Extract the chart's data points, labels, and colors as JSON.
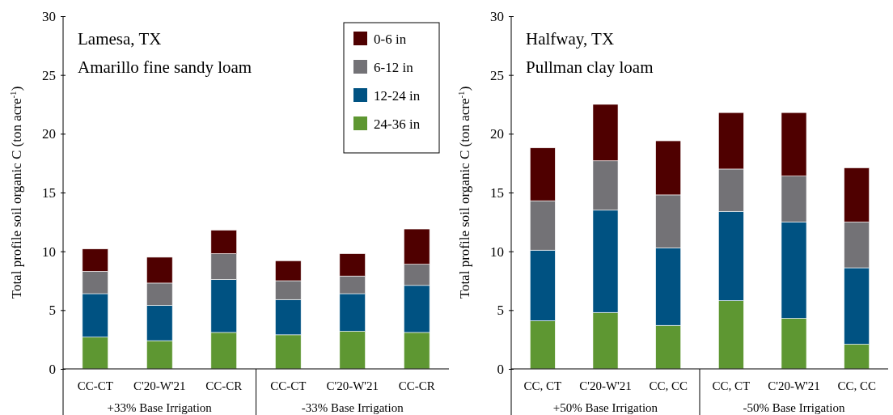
{
  "chart_data": [
    {
      "type": "bar",
      "stacked": true,
      "title": "Lamesa, TX",
      "subtitle": "Amarillo fine sandy loam",
      "ylabel": "Total profile soil organic C (ton acre$^{-1}$)",
      "categories": [
        "CC-CT",
        "C'20-W'21",
        "CC-CR",
        "CC-CT",
        "C'20-W'21",
        "CC-CR"
      ],
      "annotations": [
        "+33% Base Irrigation",
        "-33% Base Irrigation"
      ],
      "ylim": [
        0,
        30
      ],
      "yticks": [
        0,
        5,
        10,
        15,
        20,
        25,
        30
      ],
      "grid": false,
      "legend": "top right",
      "series": [
        {
          "name": "24-36 in",
          "color": "#5e9732",
          "values": [
            2.7,
            2.4,
            3.1,
            2.9,
            3.2,
            3.1
          ]
        },
        {
          "name": "12-24 in",
          "color": "#005282",
          "values": [
            3.7,
            3.0,
            4.5,
            3.0,
            3.2,
            4.0
          ]
        },
        {
          "name": "6-12 in",
          "color": "#737276",
          "values": [
            1.9,
            1.9,
            2.2,
            1.6,
            1.5,
            1.8
          ]
        },
        {
          "name": "0-6 in",
          "color": "#4f0000",
          "values": [
            1.9,
            2.2,
            2.0,
            1.7,
            1.9,
            3.0
          ]
        }
      ]
    },
    {
      "type": "bar",
      "stacked": true,
      "title": "Halfway, TX",
      "subtitle": "Pullman clay loam",
      "ylabel": "Total profile soil organic C (ton acre$^{-1}$)",
      "categories": [
        "CC, CT",
        "C'20-W'21",
        "CC, CC",
        "CC, CT",
        "C'20-W'21",
        "CC, CC"
      ],
      "annotations": [
        "+50% Base Irrigation",
        "-50% Base Irrigation"
      ],
      "ylim": [
        0,
        30
      ],
      "yticks": [
        0,
        5,
        10,
        15,
        20,
        25,
        30
      ],
      "grid": false,
      "legend": false,
      "series": [
        {
          "color": "#5e9732",
          "values": [
            4.1,
            4.8,
            3.7,
            5.8,
            4.3,
            2.1
          ]
        },
        {
          "color": "#005282",
          "values": [
            6.0,
            8.7,
            6.6,
            7.6,
            8.2,
            6.5
          ]
        },
        {
          "color": "#737276",
          "values": [
            4.2,
            4.2,
            4.5,
            3.6,
            3.9,
            3.9
          ]
        },
        {
          "color": "#4f0000",
          "values": [
            4.5,
            4.8,
            4.6,
            4.8,
            5.4,
            4.6
          ]
        }
      ]
    }
  ]
}
